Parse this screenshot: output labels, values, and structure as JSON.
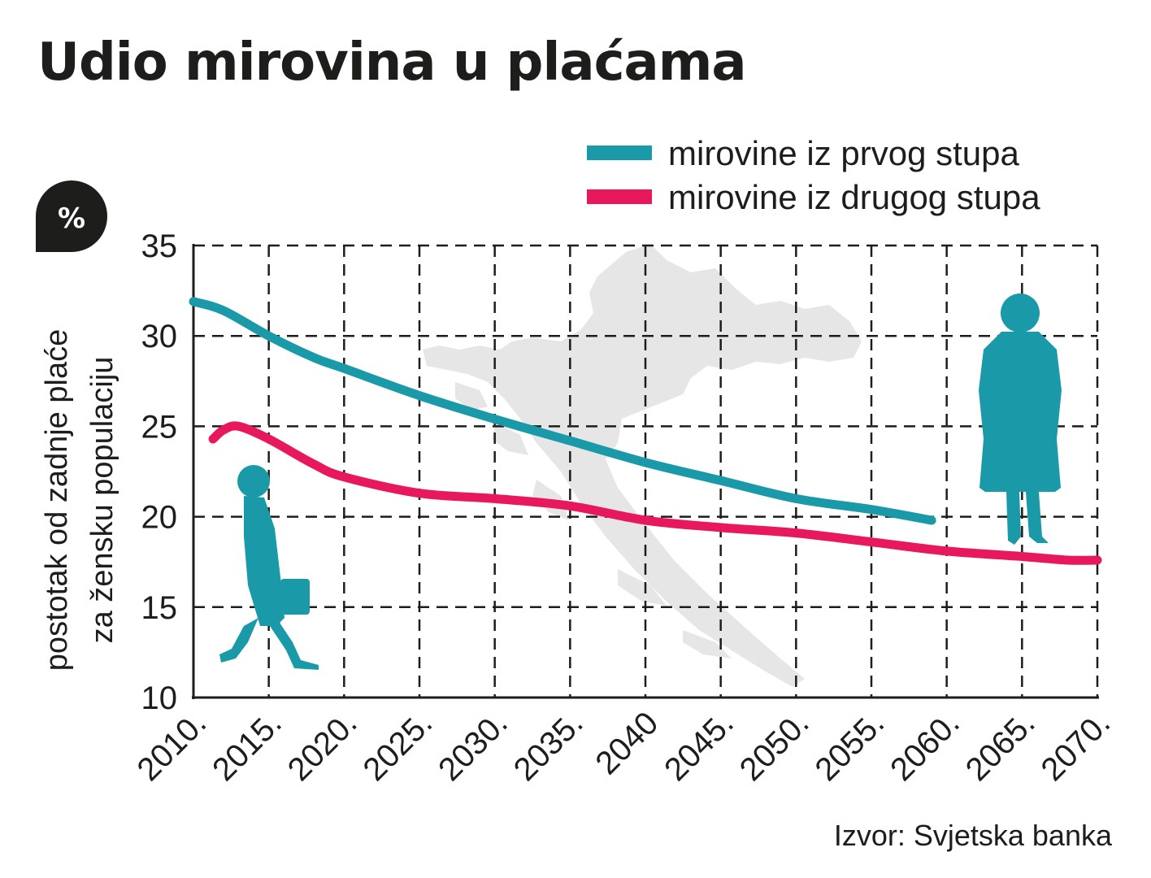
{
  "chart_data": {
    "type": "line",
    "title": "Udio mirovina u plaćama",
    "unit_badge": "%",
    "ylabel": [
      "postotak od zadnje plaće",
      "za žensku populaciju"
    ],
    "xlabel": "",
    "xlim": [
      2010,
      2070
    ],
    "ylim": [
      10,
      35
    ],
    "x_ticks": [
      2010,
      2015,
      2020,
      2025,
      2030,
      2035,
      2040,
      2045,
      2050,
      2055,
      2060,
      2065,
      2070
    ],
    "x_tick_labels": [
      "2010.",
      "2015.",
      "2020.",
      "2025.",
      "2030.",
      "2035.",
      "2040",
      "2045.",
      "2050.",
      "2055.",
      "2060.",
      "2065.",
      "2070."
    ],
    "y_ticks": [
      10,
      15,
      20,
      25,
      30,
      35
    ],
    "y_tick_labels": [
      "10",
      "15",
      "20",
      "25",
      "30",
      "35"
    ],
    "grid": true,
    "grid_style": "dashed",
    "legend_position": "top-right",
    "series": [
      {
        "name": "mirovine iz prvog stupa",
        "color": "#1a9aa8",
        "x": [
          2010,
          2012,
          2015,
          2018,
          2020,
          2025,
          2030,
          2035,
          2040,
          2045,
          2050,
          2055,
          2059
        ],
        "y": [
          31.9,
          31.4,
          30.0,
          28.8,
          28.2,
          26.7,
          25.4,
          24.2,
          23.0,
          22.0,
          21.0,
          20.4,
          19.8
        ]
      },
      {
        "name": "mirovine iz drugog stupa",
        "color": "#e8185c",
        "x": [
          2011.3,
          2012,
          2013,
          2015,
          2018,
          2020,
          2025,
          2030,
          2035,
          2040,
          2045,
          2050,
          2055,
          2060,
          2065,
          2068,
          2070
        ],
        "y": [
          24.3,
          24.8,
          25.0,
          24.3,
          22.9,
          22.2,
          21.3,
          21.0,
          20.6,
          19.8,
          19.4,
          19.1,
          18.6,
          18.1,
          17.8,
          17.6,
          17.6
        ]
      }
    ],
    "source": "Izvor: Svjetska banka"
  }
}
